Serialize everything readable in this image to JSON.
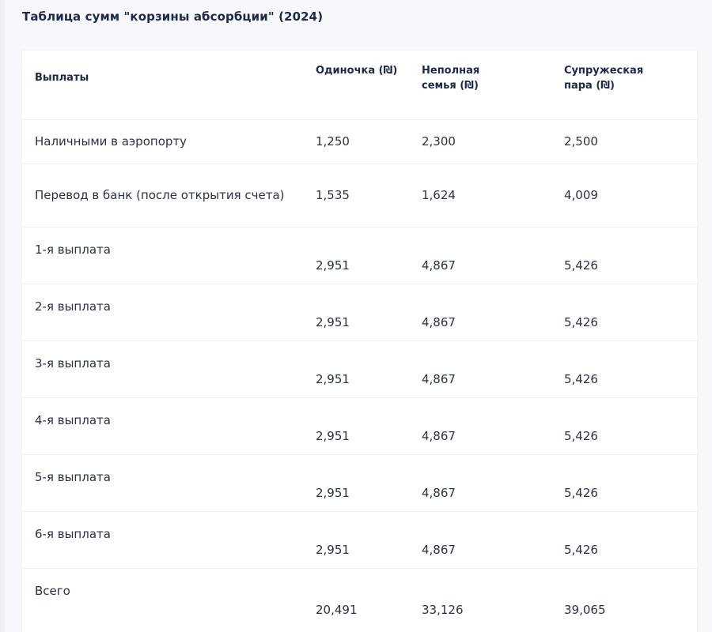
{
  "title": "Таблица сумм \"корзины абсорбции\" (2024)",
  "table": {
    "headers": {
      "payments": "Выплаты",
      "single": "Одиночка (₪)",
      "single_parent_line1": "Неполная",
      "single_parent_line2": "семья (₪)",
      "couple_line1": "Супружеская",
      "couple_line2": "пара (₪)"
    },
    "rows": [
      {
        "label": "Наличными в аэропорту",
        "single": "1,250",
        "single_parent": "2,300",
        "couple": "2,500"
      },
      {
        "label": "Перевод в банк (после открытия счета)",
        "single": "1,535",
        "single_parent": "1,624",
        "couple": "4,009"
      },
      {
        "label": "1-я выплата",
        "single": "2,951",
        "single_parent": "4,867",
        "couple": "5,426"
      },
      {
        "label": "2-я выплата",
        "single": "2,951",
        "single_parent": "4,867",
        "couple": "5,426"
      },
      {
        "label": "3-я выплата",
        "single": "2,951",
        "single_parent": "4,867",
        "couple": "5,426"
      },
      {
        "label": "4-я выплата",
        "single": "2,951",
        "single_parent": "4,867",
        "couple": "5,426"
      },
      {
        "label": "5-я выплата",
        "single": "2,951",
        "single_parent": "4,867",
        "couple": "5,426"
      },
      {
        "label": "6-я выплата",
        "single": "2,951",
        "single_parent": "4,867",
        "couple": "5,426"
      },
      {
        "label": "Всего",
        "single": "20,491",
        "single_parent": "33,126",
        "couple": "39,065"
      }
    ]
  }
}
